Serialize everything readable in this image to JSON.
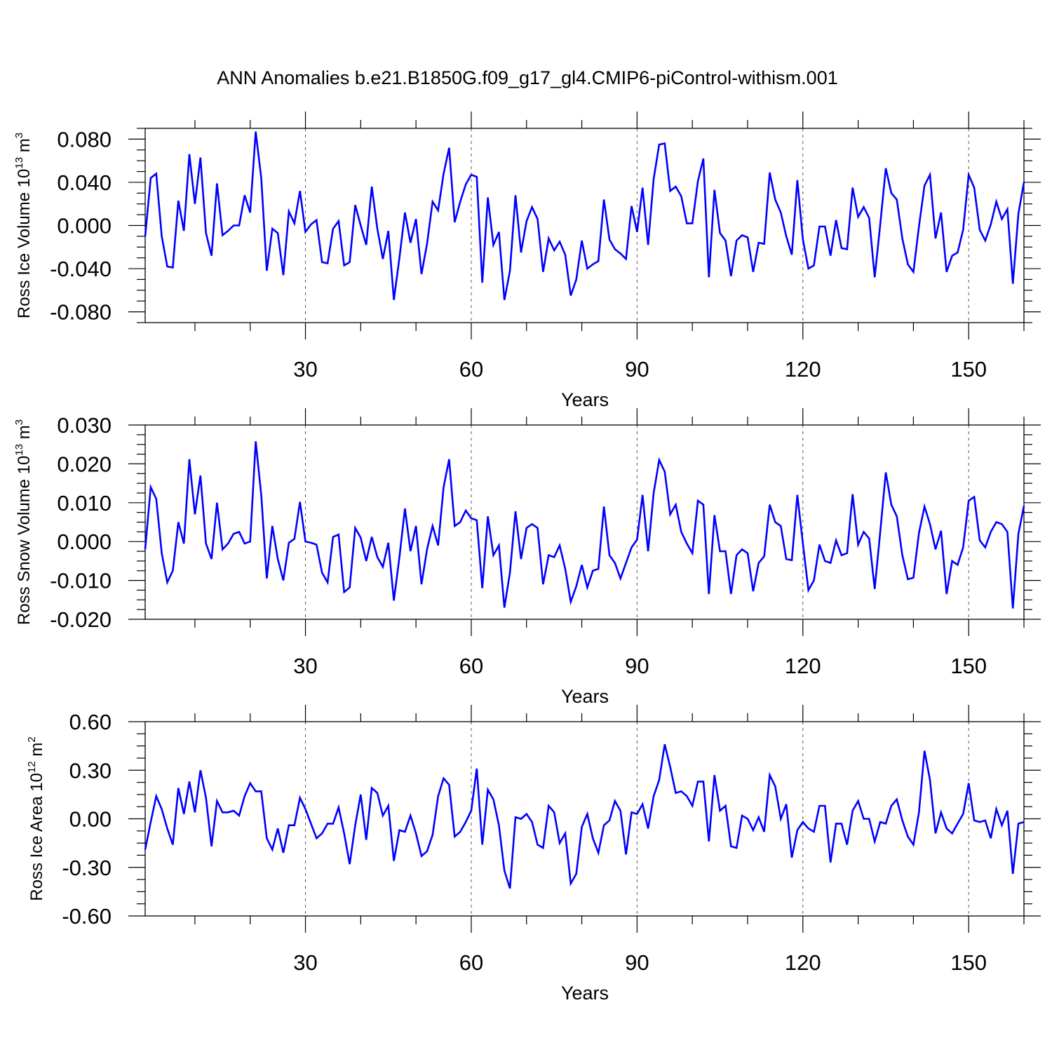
{
  "title": "ANN Anomalies b.e21.B1850G.f09_g17_gl4.CMIP6-piControl-withism.001",
  "colors": {
    "line": "#0000ff",
    "axis": "#000000",
    "grid": "#555555"
  },
  "chart_data": [
    {
      "type": "line",
      "xlabel": "Years",
      "ylabel": {
        "text": "Ross Ice Volume 10",
        "exponent": "13",
        "unit": " m",
        "unit_exponent": "3"
      },
      "xlim": [
        1,
        160
      ],
      "ylim": [
        -0.09,
        0.09
      ],
      "x_ticks": [
        "30",
        "60",
        "90",
        "120",
        "150"
      ],
      "y_ticks": [
        "0.080",
        "0.040",
        "0.000",
        "-0.040",
        "-0.080"
      ],
      "grid": "dashed vertical lines at x ticks",
      "series": [
        {
          "x_start": 1,
          "values": [
            -0.01,
            0.044,
            0.048,
            -0.01,
            -0.038,
            -0.039,
            0.023,
            -0.005,
            0.066,
            0.02,
            0.063,
            -0.007,
            -0.028,
            0.039,
            -0.009,
            -0.005,
            0.0,
            0.0,
            0.028,
            0.012,
            0.087,
            0.044,
            -0.042,
            -0.003,
            -0.007,
            -0.046,
            0.013,
            0.002,
            0.032,
            -0.006,
            0.001,
            0.005,
            -0.034,
            -0.035,
            -0.003,
            0.004,
            -0.037,
            -0.034,
            0.019,
            0.0,
            -0.018,
            0.036,
            -0.003,
            -0.031,
            -0.005,
            -0.069,
            -0.03,
            0.012,
            -0.016,
            0.006,
            -0.045,
            -0.017,
            0.022,
            0.014,
            0.048,
            0.072,
            0.003,
            0.022,
            0.038,
            0.047,
            0.045,
            -0.053,
            0.026,
            -0.018,
            -0.006,
            -0.069,
            -0.042,
            0.028,
            -0.025,
            0.004,
            0.017,
            0.006,
            -0.043,
            -0.012,
            -0.023,
            -0.015,
            -0.027,
            -0.065,
            -0.05,
            -0.014,
            -0.04,
            -0.036,
            -0.033,
            0.024,
            -0.013,
            -0.022,
            -0.026,
            -0.031,
            0.018,
            -0.006,
            0.035,
            -0.018,
            0.043,
            0.075,
            0.076,
            0.032,
            0.036,
            0.027,
            0.002,
            0.002,
            0.041,
            0.062,
            -0.048,
            0.033,
            -0.007,
            -0.014,
            -0.047,
            -0.014,
            -0.009,
            -0.011,
            -0.043,
            -0.016,
            -0.017,
            0.049,
            0.024,
            0.012,
            -0.01,
            -0.027,
            0.042,
            -0.013,
            -0.04,
            -0.037,
            -0.001,
            -0.001,
            -0.028,
            0.005,
            -0.021,
            -0.022,
            0.035,
            0.008,
            0.017,
            0.007,
            -0.048,
            0.001,
            0.053,
            0.03,
            0.024,
            -0.012,
            -0.036,
            -0.043,
            -0.001,
            0.037,
            0.047,
            -0.012,
            0.012,
            -0.043,
            -0.028,
            -0.025,
            -0.004,
            0.047,
            0.035,
            -0.004,
            -0.014,
            0.001,
            0.022,
            0.006,
            0.015,
            -0.054,
            0.011,
            0.04
          ]
        }
      ]
    },
    {
      "type": "line",
      "xlabel": "Years",
      "ylabel": {
        "text": "Ross Snow Volume 10",
        "exponent": "13",
        "unit": " m",
        "unit_exponent": "3"
      },
      "xlim": [
        1,
        160
      ],
      "ylim": [
        -0.02,
        0.03
      ],
      "x_ticks": [
        "30",
        "60",
        "90",
        "120",
        "150"
      ],
      "y_ticks": [
        "0.030",
        "0.020",
        "0.010",
        "0.000",
        "-0.010",
        "-0.020"
      ],
      "grid": "dashed vertical lines at x ticks",
      "series": [
        {
          "x_start": 1,
          "values": [
            -0.002,
            0.014,
            0.011,
            -0.003,
            -0.0105,
            -0.0075,
            0.005,
            -0.0005,
            0.0212,
            0.007,
            0.017,
            -0.0005,
            -0.0045,
            0.01,
            -0.002,
            -0.0005,
            0.002,
            0.0025,
            -0.0005,
            0.0,
            0.0258,
            0.012,
            -0.0095,
            0.004,
            -0.0045,
            -0.01,
            -0.0003,
            0.0007,
            0.0102,
            0.0,
            -0.0003,
            -0.0008,
            -0.008,
            -0.0105,
            0.0012,
            0.0018,
            -0.013,
            -0.0118,
            0.0035,
            0.001,
            -0.005,
            0.0012,
            -0.004,
            -0.0065,
            -0.0003,
            -0.0152,
            -0.004,
            0.0085,
            -0.0025,
            0.004,
            -0.011,
            -0.002,
            0.004,
            -0.001,
            0.014,
            0.0212,
            0.004,
            0.005,
            0.008,
            0.006,
            0.0055,
            -0.012,
            0.0065,
            -0.0035,
            -0.001,
            -0.017,
            -0.008,
            0.0078,
            -0.0045,
            0.0035,
            0.0045,
            0.0035,
            -0.011,
            -0.0035,
            -0.004,
            -0.001,
            -0.007,
            -0.0155,
            -0.0115,
            -0.006,
            -0.0118,
            -0.0075,
            -0.007,
            0.009,
            -0.0035,
            -0.0055,
            -0.0095,
            -0.0055,
            -0.0015,
            0.0005,
            0.012,
            -0.0025,
            0.0125,
            0.021,
            0.018,
            0.007,
            0.0095,
            0.0025,
            -0.0005,
            -0.003,
            0.0105,
            0.0095,
            -0.0135,
            0.0068,
            -0.0025,
            -0.0025,
            -0.0135,
            -0.0035,
            -0.002,
            -0.003,
            -0.0128,
            -0.0055,
            -0.0038,
            0.0095,
            0.005,
            0.004,
            -0.0045,
            -0.0048,
            0.012,
            -0.0005,
            -0.0125,
            -0.01,
            -0.0008,
            -0.005,
            -0.0055,
            0.0003,
            -0.0035,
            -0.003,
            0.0122,
            -0.0008,
            0.0025,
            0.0008,
            -0.0122,
            0.0025,
            0.0178,
            0.0095,
            0.0065,
            -0.0035,
            -0.0097,
            -0.0093,
            0.0022,
            0.009,
            0.0045,
            -0.002,
            0.0028,
            -0.0135,
            -0.005,
            -0.006,
            -0.0015,
            0.0105,
            0.0115,
            0.0003,
            -0.0015,
            0.0025,
            0.005,
            0.0045,
            0.0025,
            -0.0172,
            0.002,
            0.0092
          ]
        }
      ]
    },
    {
      "type": "line",
      "xlabel": "Years",
      "ylabel": {
        "text": "Ross Ice Area 10",
        "exponent": "12",
        "unit": " m",
        "unit_exponent": "2"
      },
      "xlim": [
        1,
        160
      ],
      "ylim": [
        -0.6,
        0.6
      ],
      "x_ticks": [
        "30",
        "60",
        "90",
        "120",
        "150"
      ],
      "y_ticks": [
        "0.60",
        "0.30",
        "0.00",
        "-0.30",
        "-0.60"
      ],
      "grid": "dashed vertical lines at x ticks",
      "series": [
        {
          "x_start": 1,
          "values": [
            -0.19,
            -0.02,
            0.14,
            0.06,
            -0.06,
            -0.16,
            0.19,
            0.03,
            0.23,
            0.04,
            0.3,
            0.13,
            -0.17,
            0.11,
            0.04,
            0.04,
            0.05,
            0.02,
            0.14,
            0.22,
            0.17,
            0.17,
            -0.12,
            -0.19,
            -0.06,
            -0.21,
            -0.04,
            -0.04,
            0.13,
            0.06,
            -0.03,
            -0.12,
            -0.09,
            -0.03,
            -0.03,
            0.07,
            -0.09,
            -0.28,
            -0.04,
            0.15,
            -0.13,
            0.19,
            0.16,
            0.02,
            0.08,
            -0.26,
            -0.07,
            -0.08,
            0.02,
            -0.09,
            -0.23,
            -0.2,
            -0.1,
            0.14,
            0.25,
            0.21,
            -0.11,
            -0.08,
            -0.02,
            0.05,
            0.31,
            -0.16,
            0.18,
            0.12,
            -0.04,
            -0.32,
            -0.43,
            0.01,
            0.0,
            0.03,
            -0.02,
            -0.16,
            -0.18,
            0.08,
            0.04,
            -0.15,
            -0.09,
            -0.4,
            -0.34,
            -0.05,
            0.03,
            -0.12,
            -0.21,
            -0.04,
            -0.01,
            0.11,
            0.05,
            -0.22,
            0.04,
            0.03,
            0.09,
            -0.06,
            0.14,
            0.24,
            0.46,
            0.32,
            0.16,
            0.17,
            0.14,
            0.08,
            0.23,
            0.23,
            -0.14,
            0.27,
            0.05,
            0.08,
            -0.17,
            -0.18,
            0.02,
            0.0,
            -0.07,
            0.01,
            -0.08,
            0.27,
            0.2,
            0.0,
            0.09,
            -0.24,
            -0.07,
            -0.02,
            -0.06,
            -0.08,
            0.08,
            0.08,
            -0.27,
            -0.03,
            -0.03,
            -0.16,
            0.05,
            0.11,
            0.0,
            0.0,
            -0.14,
            -0.02,
            -0.03,
            0.08,
            0.12,
            -0.01,
            -0.11,
            -0.16,
            0.04,
            0.42,
            0.24,
            -0.09,
            0.04,
            -0.06,
            -0.09,
            -0.03,
            0.03,
            0.22,
            -0.01,
            -0.02,
            -0.01,
            -0.12,
            0.06,
            -0.04,
            0.05,
            -0.34,
            -0.03,
            -0.02
          ]
        }
      ]
    }
  ]
}
